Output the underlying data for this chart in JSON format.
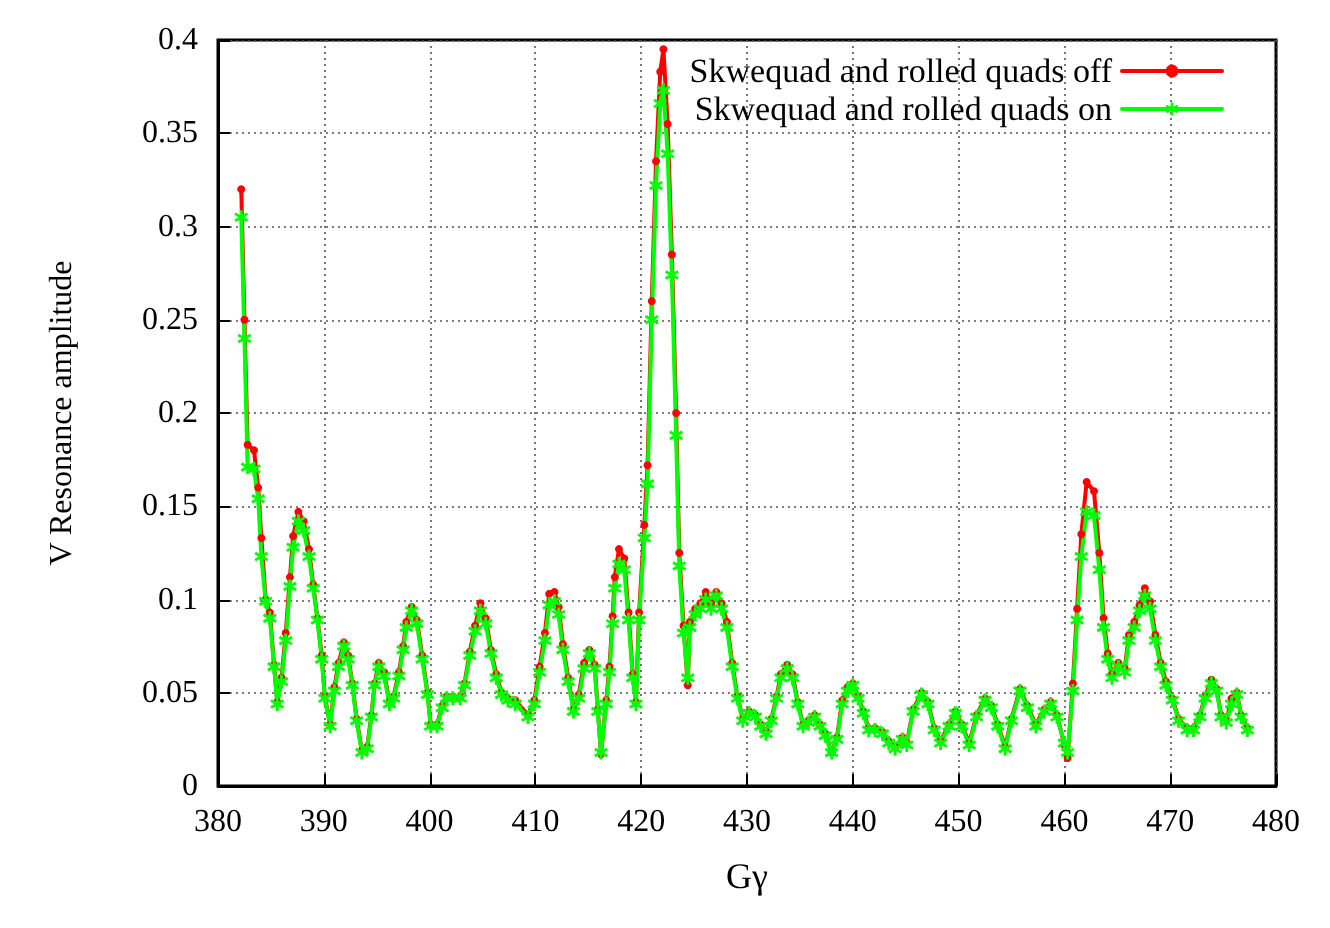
{
  "chart_data": {
    "type": "line",
    "xlabel": "Gγ",
    "ylabel": "V Resonance amplitude",
    "x": [
      382.2,
      382.5,
      382.8,
      383.4,
      383.8,
      384.1,
      384.5,
      384.9,
      385.3,
      385.6,
      386.0,
      386.4,
      386.8,
      387.1,
      387.6,
      388.1,
      388.6,
      389.0,
      389.4,
      389.8,
      390.1,
      390.6,
      391.0,
      391.4,
      391.9,
      392.3,
      392.7,
      393.1,
      393.6,
      394.1,
      394.5,
      394.8,
      395.2,
      395.7,
      396.2,
      396.6,
      397.1,
      397.5,
      397.8,
      398.3,
      398.8,
      399.3,
      399.8,
      400.1,
      400.7,
      401.2,
      401.6,
      402.2,
      402.9,
      403.3,
      403.8,
      404.3,
      404.8,
      405.3,
      405.8,
      406.3,
      406.8,
      407.4,
      408.1,
      409.3,
      409.9,
      410.4,
      410.9,
      411.3,
      411.8,
      412.2,
      412.6,
      413.1,
      413.6,
      414.1,
      414.6,
      415.1,
      415.6,
      415.9,
      416.2,
      416.7,
      417.0,
      417.3,
      417.5,
      417.9,
      418.4,
      418.8,
      419.2,
      419.5,
      419.8,
      420.3,
      420.6,
      421.0,
      421.4,
      421.8,
      422.1,
      422.5,
      422.9,
      423.3,
      423.6,
      424.0,
      424.4,
      424.6,
      425.1,
      425.6,
      426.1,
      426.6,
      427.1,
      427.6,
      428.1,
      428.6,
      429.1,
      429.6,
      430.2,
      430.8,
      431.3,
      431.8,
      432.3,
      432.8,
      433.2,
      433.8,
      434.3,
      434.8,
      435.3,
      435.8,
      436.4,
      436.9,
      437.4,
      438.0,
      438.5,
      439.0,
      439.5,
      440.0,
      440.5,
      441.0,
      441.5,
      442.1,
      442.8,
      443.4,
      444.0,
      444.7,
      445.1,
      445.7,
      446.5,
      447.1,
      447.7,
      448.3,
      449.1,
      449.7,
      450.3,
      451.0,
      451.7,
      452.5,
      453.1,
      453.7,
      454.4,
      455.0,
      455.8,
      456.5,
      457.3,
      458.1,
      458.7,
      459.3,
      460.0,
      460.3,
      460.8,
      461.2,
      461.6,
      462.1,
      462.8,
      463.3,
      463.7,
      464.1,
      464.5,
      465.1,
      465.7,
      466.1,
      466.6,
      467.1,
      467.6,
      468.1,
      468.6,
      469.1,
      469.6,
      470.2,
      470.8,
      471.6,
      472.2,
      472.8,
      473.3,
      473.9,
      474.4,
      474.8,
      475.3,
      475.8,
      476.3,
      476.7,
      477.3
    ],
    "series": [
      {
        "name": "Skwequad and rolled quads off",
        "color": "#ff0000",
        "marker": "circle",
        "values": [
          0.32,
          0.25,
          0.183,
          0.18,
          0.16,
          0.133,
          0.1,
          0.093,
          0.065,
          0.045,
          0.058,
          0.082,
          0.112,
          0.134,
          0.147,
          0.142,
          0.127,
          0.108,
          0.09,
          0.07,
          0.048,
          0.033,
          0.053,
          0.066,
          0.077,
          0.07,
          0.055,
          0.036,
          0.019,
          0.021,
          0.038,
          0.055,
          0.066,
          0.061,
          0.045,
          0.048,
          0.061,
          0.075,
          0.088,
          0.096,
          0.089,
          0.07,
          0.05,
          0.033,
          0.033,
          0.043,
          0.048,
          0.048,
          0.048,
          0.055,
          0.072,
          0.086,
          0.098,
          0.09,
          0.073,
          0.06,
          0.05,
          0.047,
          0.046,
          0.038,
          0.046,
          0.064,
          0.082,
          0.103,
          0.104,
          0.096,
          0.076,
          0.058,
          0.041,
          0.049,
          0.066,
          0.073,
          0.065,
          0.041,
          0.017,
          0.046,
          0.064,
          0.091,
          0.112,
          0.127,
          0.122,
          0.093,
          0.06,
          0.045,
          0.093,
          0.14,
          0.172,
          0.26,
          0.335,
          0.383,
          0.395,
          0.355,
          0.285,
          0.2,
          0.125,
          0.086,
          0.054,
          0.088,
          0.095,
          0.098,
          0.104,
          0.098,
          0.104,
          0.098,
          0.088,
          0.066,
          0.048,
          0.036,
          0.04,
          0.038,
          0.033,
          0.029,
          0.036,
          0.048,
          0.06,
          0.065,
          0.06,
          0.045,
          0.033,
          0.035,
          0.038,
          0.033,
          0.028,
          0.018,
          0.026,
          0.046,
          0.053,
          0.055,
          0.048,
          0.04,
          0.031,
          0.031,
          0.029,
          0.024,
          0.021,
          0.026,
          0.023,
          0.041,
          0.05,
          0.045,
          0.031,
          0.024,
          0.033,
          0.04,
          0.033,
          0.023,
          0.038,
          0.047,
          0.043,
          0.033,
          0.021,
          0.036,
          0.052,
          0.043,
          0.033,
          0.041,
          0.045,
          0.038,
          0.022,
          0.015,
          0.055,
          0.095,
          0.135,
          0.163,
          0.158,
          0.125,
          0.09,
          0.071,
          0.06,
          0.066,
          0.063,
          0.081,
          0.088,
          0.097,
          0.106,
          0.099,
          0.081,
          0.066,
          0.056,
          0.047,
          0.036,
          0.031,
          0.031,
          0.038,
          0.048,
          0.057,
          0.052,
          0.038,
          0.035,
          0.047,
          0.05,
          0.038,
          0.031
        ]
      },
      {
        "name": "Skwequad and rolled quads on",
        "color": "#00ff00",
        "marker": "star",
        "values": [
          0.305,
          0.24,
          0.171,
          0.17,
          0.154,
          0.123,
          0.099,
          0.09,
          0.064,
          0.044,
          0.056,
          0.078,
          0.107,
          0.128,
          0.142,
          0.137,
          0.123,
          0.106,
          0.089,
          0.068,
          0.047,
          0.032,
          0.051,
          0.064,
          0.075,
          0.068,
          0.054,
          0.035,
          0.018,
          0.02,
          0.037,
          0.054,
          0.064,
          0.059,
          0.044,
          0.047,
          0.059,
          0.073,
          0.085,
          0.094,
          0.087,
          0.068,
          0.049,
          0.032,
          0.032,
          0.042,
          0.047,
          0.047,
          0.047,
          0.054,
          0.07,
          0.083,
          0.094,
          0.087,
          0.071,
          0.058,
          0.049,
          0.046,
          0.044,
          0.037,
          0.044,
          0.061,
          0.078,
          0.097,
          0.099,
          0.092,
          0.073,
          0.056,
          0.04,
          0.047,
          0.063,
          0.071,
          0.063,
          0.04,
          0.018,
          0.044,
          0.061,
          0.087,
          0.106,
          0.119,
          0.116,
          0.089,
          0.058,
          0.044,
          0.089,
          0.133,
          0.162,
          0.25,
          0.322,
          0.366,
          0.373,
          0.339,
          0.274,
          0.188,
          0.118,
          0.082,
          0.058,
          0.085,
          0.092,
          0.095,
          0.1,
          0.095,
          0.102,
          0.095,
          0.085,
          0.064,
          0.047,
          0.035,
          0.039,
          0.037,
          0.032,
          0.028,
          0.035,
          0.047,
          0.058,
          0.063,
          0.058,
          0.044,
          0.032,
          0.034,
          0.037,
          0.032,
          0.027,
          0.018,
          0.025,
          0.044,
          0.051,
          0.054,
          0.047,
          0.039,
          0.03,
          0.03,
          0.028,
          0.023,
          0.02,
          0.025,
          0.022,
          0.04,
          0.049,
          0.044,
          0.03,
          0.023,
          0.032,
          0.039,
          0.032,
          0.022,
          0.037,
          0.046,
          0.042,
          0.032,
          0.02,
          0.035,
          0.051,
          0.042,
          0.032,
          0.04,
          0.044,
          0.037,
          0.023,
          0.018,
          0.051,
          0.089,
          0.123,
          0.147,
          0.145,
          0.116,
          0.085,
          0.068,
          0.058,
          0.064,
          0.061,
          0.078,
          0.085,
          0.094,
          0.102,
          0.095,
          0.078,
          0.064,
          0.054,
          0.046,
          0.035,
          0.03,
          0.03,
          0.037,
          0.047,
          0.055,
          0.051,
          0.037,
          0.034,
          0.044,
          0.049,
          0.037,
          0.03
        ]
      }
    ],
    "xlim": [
      380,
      480
    ],
    "xticks": [
      380,
      390,
      400,
      410,
      420,
      430,
      440,
      450,
      460,
      470,
      480
    ],
    "ylim": [
      0,
      0.4
    ],
    "yticks": [
      0,
      0.05,
      0.1,
      0.15,
      0.2,
      0.25,
      0.3,
      0.35,
      0.4
    ],
    "grid": true,
    "legend": "top right",
    "line_style": "solid"
  }
}
